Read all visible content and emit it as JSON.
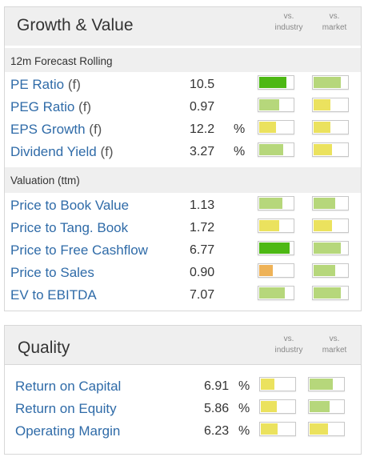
{
  "colors": {
    "link": "#2f6ba8",
    "dark_green": "#4db814",
    "light_green": "#b6d77b",
    "yellow": "#ebe25e",
    "orange": "#eeb257",
    "header_bg": "#efefef",
    "border": "#d7d7d7"
  },
  "growth": {
    "title": "Growth & Value",
    "col_industry": [
      "vs.",
      "industry"
    ],
    "col_market": [
      "vs.",
      "market"
    ],
    "section1": "12m Forecast Rolling",
    "section2": "Valuation (ttm)",
    "rows1": [
      {
        "label": "PE Ratio",
        "suffix": "(f)",
        "value": "10.5",
        "unit": "",
        "industry": {
          "level": 0.82,
          "color": "dark_green"
        },
        "market": {
          "level": 0.8,
          "color": "light_green"
        }
      },
      {
        "label": "PEG Ratio",
        "suffix": "(f)",
        "value": "0.97",
        "unit": "",
        "industry": {
          "level": 0.6,
          "color": "light_green"
        },
        "market": {
          "level": 0.5,
          "color": "yellow"
        }
      },
      {
        "label": "EPS Growth",
        "suffix": "(f)",
        "value": "12.2",
        "unit": "%",
        "industry": {
          "level": 0.5,
          "color": "yellow"
        },
        "market": {
          "level": 0.5,
          "color": "yellow"
        }
      },
      {
        "label": "Dividend Yield",
        "suffix": "(f)",
        "value": "3.27",
        "unit": "%",
        "industry": {
          "level": 0.72,
          "color": "light_green"
        },
        "market": {
          "level": 0.55,
          "color": "yellow"
        }
      }
    ],
    "rows2": [
      {
        "label": "Price to Book Value",
        "suffix": "",
        "value": "1.13",
        "unit": "",
        "industry": {
          "level": 0.7,
          "color": "light_green"
        },
        "market": {
          "level": 0.65,
          "color": "light_green"
        }
      },
      {
        "label": "Price to Tang. Book",
        "suffix": "",
        "value": "1.72",
        "unit": "",
        "industry": {
          "level": 0.6,
          "color": "yellow"
        },
        "market": {
          "level": 0.55,
          "color": "yellow"
        }
      },
      {
        "label": "Price to Free Cashflow",
        "suffix": "",
        "value": "6.77",
        "unit": "",
        "industry": {
          "level": 0.9,
          "color": "dark_green"
        },
        "market": {
          "level": 0.8,
          "color": "light_green"
        }
      },
      {
        "label": "Price to Sales",
        "suffix": "",
        "value": "0.90",
        "unit": "",
        "industry": {
          "level": 0.4,
          "color": "orange"
        },
        "market": {
          "level": 0.65,
          "color": "light_green"
        }
      },
      {
        "label": "EV to EBITDA",
        "suffix": "",
        "value": "7.07",
        "unit": "",
        "industry": {
          "level": 0.75,
          "color": "light_green"
        },
        "market": {
          "level": 0.8,
          "color": "light_green"
        }
      }
    ]
  },
  "quality": {
    "title": "Quality",
    "col_industry": [
      "vs.",
      "industry"
    ],
    "col_market": [
      "vs.",
      "market"
    ],
    "rows": [
      {
        "label": "Return on Capital",
        "suffix": "",
        "value": "6.91",
        "unit": "%",
        "industry": {
          "level": 0.4,
          "color": "yellow"
        },
        "market": {
          "level": 0.7,
          "color": "light_green"
        }
      },
      {
        "label": "Return on Equity",
        "suffix": "",
        "value": "5.86",
        "unit": "%",
        "industry": {
          "level": 0.48,
          "color": "yellow"
        },
        "market": {
          "level": 0.6,
          "color": "light_green"
        }
      },
      {
        "label": "Operating Margin",
        "suffix": "",
        "value": "6.23",
        "unit": "%",
        "industry": {
          "level": 0.5,
          "color": "yellow"
        },
        "market": {
          "level": 0.55,
          "color": "yellow"
        }
      }
    ]
  }
}
